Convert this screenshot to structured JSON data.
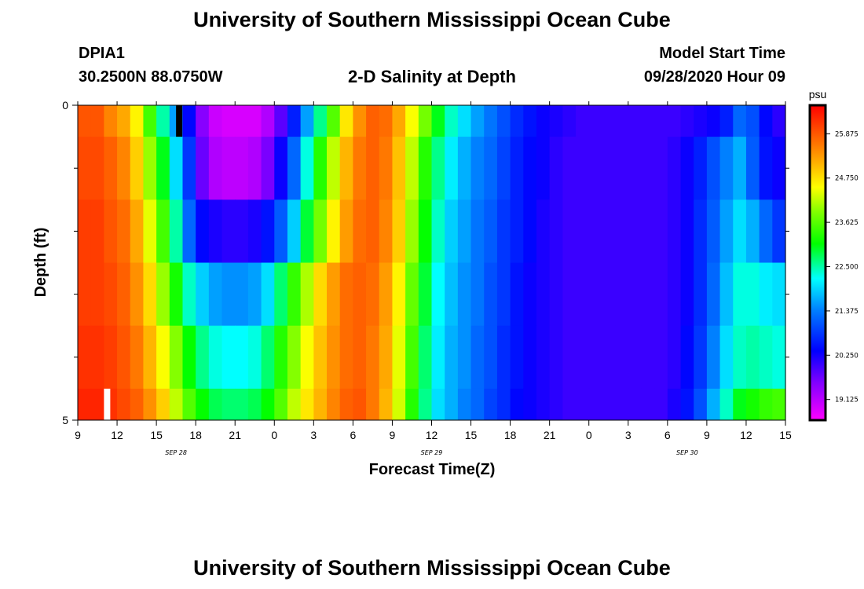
{
  "title": "University of Southern Mississippi Ocean Cube",
  "footer_title": "University of Southern Mississippi Ocean Cube",
  "station": {
    "id": "DPIA1",
    "coords": "30.2500N 88.0750W"
  },
  "plot_title": "2-D Salinity at Depth",
  "model": {
    "label": "Model Start Time",
    "time": "09/28/2020 Hour 09"
  },
  "chart_data": {
    "type": "heatmap",
    "title": "2-D Salinity at Depth",
    "xlabel": "Forecast Time(Z)",
    "ylabel": "Depth (ft)",
    "xlim": [
      0,
      54
    ],
    "ylim": [
      0,
      5
    ],
    "y_tick_labels": [
      "0",
      "5"
    ],
    "y_minor_ticks": [
      1,
      2,
      3,
      4
    ],
    "x_tick_values": [
      0,
      3,
      6,
      9,
      12,
      15,
      18,
      21,
      24,
      27,
      30,
      33,
      36,
      39,
      42,
      45,
      48,
      51,
      54
    ],
    "x_tick_labels": [
      "9",
      "12",
      "15",
      "18",
      "21",
      "0",
      "3",
      "6",
      "9",
      "12",
      "15",
      "18",
      "21",
      "0",
      "3",
      "6",
      "9",
      "12",
      "15"
    ],
    "date_labels": [
      {
        "text": "SEP 28",
        "at": 7.5
      },
      {
        "text": "SEP 29",
        "at": 27
      },
      {
        "text": "SEP 30",
        "at": 46.5
      }
    ],
    "colorbar": {
      "unit": "psu",
      "min": 18.6,
      "max": 26.6,
      "tick_labels": [
        "25.875",
        "24.750",
        "23.625",
        "22.500",
        "21.375",
        "20.250",
        "19.125"
      ],
      "tick_values": [
        25.875,
        24.75,
        23.625,
        22.5,
        21.375,
        20.25,
        19.125
      ]
    },
    "depth_layers": [
      "0-0.5",
      "0.5-1.5",
      "1.5-2.5",
      "2.5-3.5",
      "3.5-4.5",
      "4.5-5"
    ],
    "hour_step": 1,
    "missing_marks": [
      {
        "hour": 7.5,
        "depth_top": 0,
        "depth_bottom": 0.5,
        "color": "#000000"
      },
      {
        "hour": 2,
        "depth_top": 4.5,
        "depth_bottom": 5,
        "color": "#ffffff"
      }
    ],
    "salinity_psu": [
      [
        25.9,
        25.9,
        25.5,
        25.2,
        24.6,
        23.5,
        22.5,
        21.6,
        20.4,
        19.5,
        19.0,
        18.9,
        18.9,
        18.9,
        19.2,
        19.8,
        20.6,
        21.6,
        22.6,
        23.6,
        24.7,
        25.4,
        25.8,
        25.7,
        25.2,
        24.5,
        23.8,
        23.0,
        22.4,
        22.0,
        21.6,
        21.3,
        21.0,
        20.7,
        20.5,
        20.3,
        20.2,
        20.1,
        20.0,
        20.0,
        20.0,
        20.0,
        20.0,
        20.0,
        20.0,
        20.0,
        20.1,
        20.2,
        20.3,
        20.6,
        21.2,
        21.0,
        20.4,
        20.1
      ],
      [
        26.0,
        26.0,
        25.8,
        25.5,
        24.9,
        24.0,
        23.0,
        22.0,
        20.8,
        19.7,
        19.2,
        19.1,
        19.1,
        19.2,
        19.6,
        20.3,
        21.2,
        22.3,
        23.3,
        24.2,
        25.1,
        25.6,
        25.8,
        25.6,
        25.0,
        24.2,
        23.3,
        22.6,
        22.1,
        21.7,
        21.4,
        21.2,
        20.9,
        20.6,
        20.4,
        20.3,
        20.1,
        20.0,
        20.0,
        20.0,
        20.0,
        20.0,
        20.0,
        20.0,
        20.0,
        20.1,
        20.3,
        20.6,
        21.0,
        21.4,
        21.7,
        21.1,
        20.5,
        20.3
      ],
      [
        26.1,
        26.1,
        25.9,
        25.7,
        25.2,
        24.4,
        23.5,
        22.5,
        21.2,
        20.4,
        20.2,
        20.1,
        20.1,
        20.2,
        20.5,
        21.1,
        21.9,
        22.9,
        23.8,
        24.6,
        25.3,
        25.7,
        25.8,
        25.5,
        24.9,
        24.0,
        23.1,
        22.4,
        21.9,
        21.6,
        21.3,
        21.1,
        20.8,
        20.6,
        20.4,
        20.2,
        20.1,
        20.0,
        20.0,
        20.0,
        20.0,
        20.0,
        20.0,
        20.0,
        20.0,
        20.1,
        20.3,
        20.7,
        21.1,
        21.6,
        22.0,
        21.7,
        21.2,
        20.8
      ],
      [
        26.1,
        26.1,
        26.0,
        25.8,
        25.4,
        24.8,
        24.0,
        23.2,
        22.4,
        21.9,
        21.6,
        21.5,
        21.5,
        21.6,
        22.0,
        22.7,
        23.4,
        24.1,
        24.8,
        25.3,
        25.7,
        25.8,
        25.7,
        25.3,
        24.6,
        23.7,
        22.9,
        22.2,
        21.8,
        21.5,
        21.3,
        21.0,
        20.8,
        20.5,
        20.3,
        20.2,
        20.1,
        20.0,
        20.0,
        20.0,
        20.0,
        20.0,
        20.0,
        20.0,
        20.0,
        20.1,
        20.3,
        20.7,
        21.2,
        21.8,
        22.3,
        22.3,
        22.1,
        22.0
      ],
      [
        26.2,
        26.2,
        26.1,
        25.9,
        25.6,
        25.1,
        24.5,
        23.9,
        23.1,
        22.6,
        22.3,
        22.2,
        22.2,
        22.3,
        22.7,
        23.3,
        23.9,
        24.5,
        25.0,
        25.4,
        25.7,
        25.8,
        25.6,
        25.2,
        24.4,
        23.5,
        22.7,
        22.1,
        21.7,
        21.5,
        21.2,
        21.0,
        20.7,
        20.5,
        20.3,
        20.2,
        20.1,
        20.0,
        20.0,
        20.0,
        20.0,
        20.0,
        20.0,
        20.0,
        20.0,
        20.1,
        20.4,
        20.8,
        21.4,
        22.0,
        22.4,
        22.5,
        22.4,
        22.3
      ],
      [
        26.3,
        26.3,
        26.2,
        26.0,
        25.8,
        25.4,
        24.9,
        24.2,
        23.6,
        23.1,
        22.8,
        22.7,
        22.7,
        22.8,
        23.1,
        23.6,
        24.2,
        24.7,
        25.1,
        25.5,
        25.8,
        25.9,
        25.6,
        25.1,
        24.3,
        23.3,
        22.6,
        22.0,
        21.7,
        21.4,
        21.2,
        20.9,
        20.7,
        20.4,
        20.3,
        20.2,
        20.1,
        20.0,
        20.0,
        20.0,
        20.0,
        20.0,
        20.0,
        20.0,
        20.0,
        20.2,
        20.5,
        21.0,
        21.7,
        22.4,
        23.0,
        23.2,
        23.4,
        23.5
      ]
    ]
  }
}
